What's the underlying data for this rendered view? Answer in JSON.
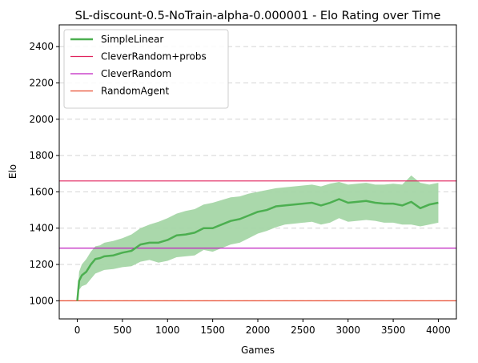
{
  "chart_data": {
    "type": "line",
    "title": "SL-discount-0.5-NoTrain-alpha-0.000001 - Elo Rating over Time",
    "xlabel": "Games",
    "ylabel": "Elo",
    "xlim": [
      -200,
      4200
    ],
    "ylim": [
      900,
      2520
    ],
    "xticks": [
      0,
      500,
      1000,
      1500,
      2000,
      2500,
      3000,
      3500,
      4000
    ],
    "yticks": [
      1000,
      1200,
      1400,
      1600,
      1800,
      2000,
      2200,
      2400
    ],
    "grid": "y-dashed",
    "legend_position": "top-left",
    "series": [
      {
        "name": "SimpleLinear",
        "kind": "line-with-band",
        "color": "#4caf50",
        "band_color": "#a5d6a7",
        "x": [
          0,
          20,
          50,
          100,
          150,
          200,
          250,
          300,
          400,
          500,
          600,
          700,
          800,
          900,
          1000,
          1100,
          1200,
          1300,
          1400,
          1500,
          1600,
          1700,
          1800,
          1900,
          2000,
          2100,
          2200,
          2300,
          2400,
          2500,
          2600,
          2700,
          2800,
          2900,
          3000,
          3100,
          3200,
          3300,
          3400,
          3500,
          3600,
          3700,
          3800,
          3900,
          4000
        ],
        "y": [
          1000,
          1110,
          1140,
          1160,
          1200,
          1230,
          1235,
          1245,
          1250,
          1265,
          1275,
          1310,
          1320,
          1320,
          1335,
          1360,
          1365,
          1375,
          1400,
          1400,
          1420,
          1440,
          1450,
          1470,
          1490,
          1500,
          1520,
          1525,
          1530,
          1535,
          1540,
          1525,
          1540,
          1560,
          1540,
          1545,
          1550,
          1540,
          1535,
          1535,
          1525,
          1545,
          1510,
          1530,
          1540
        ],
        "upper": [
          1000,
          1160,
          1200,
          1230,
          1270,
          1300,
          1305,
          1320,
          1330,
          1345,
          1365,
          1400,
          1420,
          1435,
          1455,
          1480,
          1495,
          1505,
          1530,
          1540,
          1555,
          1570,
          1575,
          1590,
          1600,
          1610,
          1620,
          1625,
          1630,
          1635,
          1640,
          1630,
          1645,
          1655,
          1640,
          1645,
          1650,
          1640,
          1640,
          1645,
          1640,
          1690,
          1650,
          1640,
          1650
        ],
        "lower": [
          1000,
          1060,
          1080,
          1090,
          1120,
          1150,
          1160,
          1170,
          1175,
          1185,
          1190,
          1215,
          1225,
          1210,
          1220,
          1240,
          1245,
          1250,
          1280,
          1270,
          1290,
          1310,
          1320,
          1345,
          1370,
          1385,
          1405,
          1420,
          1425,
          1430,
          1435,
          1420,
          1430,
          1455,
          1435,
          1440,
          1445,
          1440,
          1430,
          1430,
          1420,
          1420,
          1410,
          1420,
          1430
        ]
      },
      {
        "name": "CleverRandom+probs",
        "kind": "hline",
        "color": "#e0245e",
        "y": 1660
      },
      {
        "name": "CleverRandom",
        "kind": "hline",
        "color": "#c020c0",
        "y": 1290
      },
      {
        "name": "RandomAgent",
        "kind": "hline",
        "color": "#e84a2e",
        "y": 1000
      }
    ]
  }
}
